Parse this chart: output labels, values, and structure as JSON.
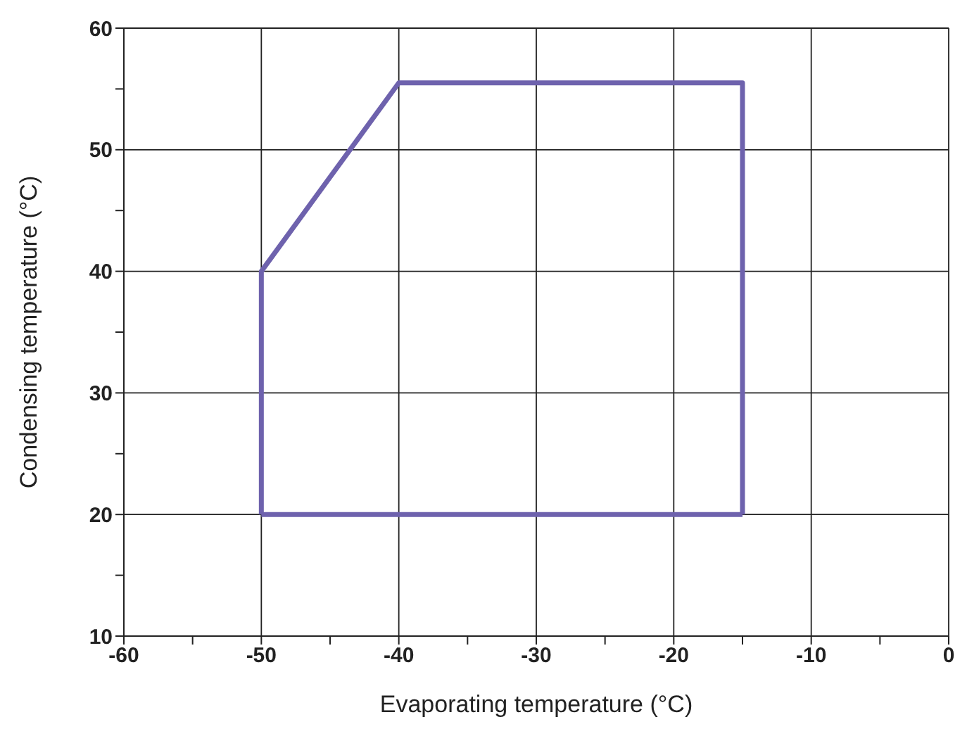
{
  "chart_data": {
    "type": "line",
    "xlabel": "Evaporating temperature (°C)",
    "ylabel": "Condensing temperature (°C)",
    "series": [
      {
        "color": "#6e62ad",
        "x": [
          -50,
          -50,
          -40,
          -15,
          -15
        ],
        "values": [
          20,
          40,
          55.5,
          55.5,
          20
        ]
      },
      {
        "color": "#6e62ad",
        "x": [
          -50,
          -15
        ],
        "values": [
          20,
          20
        ]
      }
    ],
    "xlim": [
      -60,
      0
    ],
    "ylim": [
      10,
      60
    ],
    "xticks": [
      -60,
      {
        "value": -55,
        "label": null
      },
      -50,
      {
        "value": -45,
        "label": null
      },
      -40,
      {
        "value": -35,
        "label": null
      },
      -30,
      {
        "value": -25,
        "label": null
      },
      -20,
      {
        "value": -15,
        "label": null
      },
      -10,
      {
        "value": -5,
        "label": null
      },
      0
    ],
    "yticks": [
      10,
      {
        "value": 15,
        "label": null
      },
      20,
      {
        "value": 25,
        "label": null
      },
      30,
      {
        "value": 35,
        "label": null
      },
      40,
      {
        "value": 45,
        "label": null
      },
      50,
      {
        "value": 55,
        "label": null
      },
      60
    ],
    "grid": true,
    "marker": "none",
    "line_style": "solid"
  }
}
